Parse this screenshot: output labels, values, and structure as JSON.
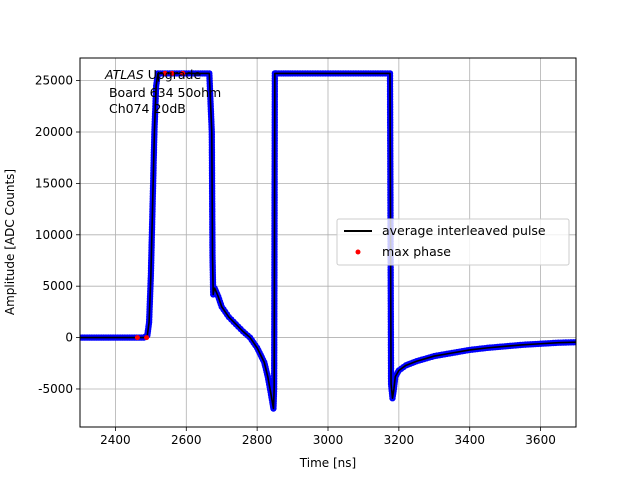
{
  "chart_data": {
    "type": "line",
    "xlabel": "Time [ns]",
    "ylabel": "Amplitude [ADC Counts]",
    "xlim": [
      2300,
      3700
    ],
    "ylim": [
      -8700,
      27200
    ],
    "xticks": [
      2400,
      2600,
      2800,
      3000,
      3200,
      3400,
      3600
    ],
    "yticks": [
      -5000,
      0,
      5000,
      10000,
      15000,
      20000,
      25000
    ],
    "grid": true,
    "legend_position": "center-right",
    "annotation": {
      "line1_italic": "ATLAS",
      "line1_rest": " Upgrade",
      "line2": " Board 634 50ohm",
      "line3": " Ch074 20dB"
    },
    "legend": [
      {
        "label": "average interleaved pulse",
        "style": "line",
        "color": "#000000"
      },
      {
        "label": "max phase",
        "style": "marker",
        "color": "#ff0000"
      }
    ],
    "series": [
      {
        "name": "average interleaved pulse",
        "color": "#000000",
        "marker_color": "#0000ff",
        "x": [
          2300,
          2340,
          2380,
          2420,
          2460,
          2480,
          2490,
          2495,
          2500,
          2505,
          2510,
          2515,
          2520,
          2560,
          2600,
          2640,
          2665,
          2672,
          2674,
          2676,
          2678,
          2680,
          2690,
          2700,
          2720,
          2740,
          2760,
          2780,
          2800,
          2820,
          2830,
          2838,
          2843,
          2846,
          2848,
          2850,
          2852,
          2855,
          2900,
          3000,
          3100,
          3175,
          3178,
          3182,
          3186,
          3190,
          3200,
          3220,
          3250,
          3300,
          3350,
          3400,
          3450,
          3500,
          3550,
          3600,
          3650,
          3700
        ],
        "y": [
          0,
          0,
          0,
          0,
          0,
          0,
          200,
          1500,
          6000,
          13000,
          20000,
          24500,
          25700,
          25700,
          25700,
          25700,
          25700,
          20000,
          8000,
          4200,
          4600,
          4800,
          4000,
          3000,
          2000,
          1300,
          600,
          0,
          -1000,
          -2400,
          -3800,
          -5300,
          -6300,
          -6900,
          -5000,
          25700,
          25700,
          25700,
          25700,
          25700,
          25700,
          25700,
          -4500,
          -5900,
          -5000,
          -3800,
          -3200,
          -2700,
          -2300,
          -1800,
          -1500,
          -1200,
          -1000,
          -850,
          -700,
          -600,
          -500,
          -450
        ]
      },
      {
        "name": "max phase",
        "color": "#ff0000",
        "x": [
          2462,
          2488,
          2540,
          2560,
          2590
        ],
        "y": [
          0,
          0,
          25700,
          25700,
          25700
        ]
      }
    ]
  }
}
